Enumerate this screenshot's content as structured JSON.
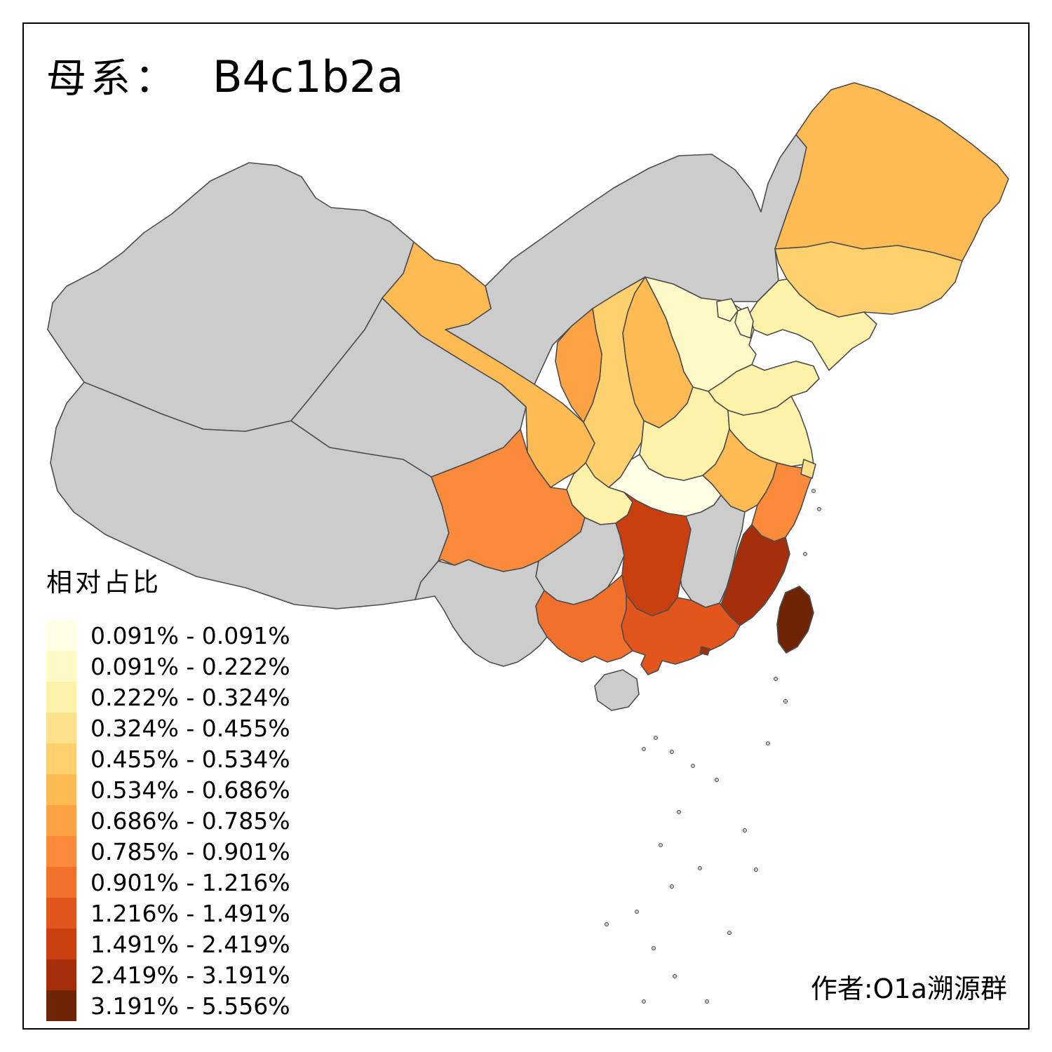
{
  "title": {
    "prefix": "母系：",
    "haplogroup": "B4c1b2a"
  },
  "legend": {
    "title": "相对占比",
    "items": [
      {
        "label": "0.091% - 0.091%",
        "color": "#FFFFE5"
      },
      {
        "label": "0.091% - 0.222%",
        "color": "#FFF9C8"
      },
      {
        "label": "0.222% - 0.324%",
        "color": "#FEF1A9"
      },
      {
        "label": "0.324% - 0.455%",
        "color": "#FEE28B"
      },
      {
        "label": "0.455% - 0.534%",
        "color": "#FED16E"
      },
      {
        "label": "0.534% - 0.686%",
        "color": "#FEBA53"
      },
      {
        "label": "0.686% - 0.785%",
        "color": "#FDA245"
      },
      {
        "label": "0.785% - 0.901%",
        "color": "#FB8A3A"
      },
      {
        "label": "0.901% - 1.216%",
        "color": "#F1702B"
      },
      {
        "label": "1.216% - 1.491%",
        "color": "#E2551C"
      },
      {
        "label": "1.491% - 2.419%",
        "color": "#C93F10"
      },
      {
        "label": "2.419% - 3.191%",
        "color": "#A52F0B"
      },
      {
        "label": "3.191% - 5.556%",
        "color": "#6F2405"
      }
    ]
  },
  "author": "作者:O1a溯源群",
  "map": {
    "na_color": "#CCCCCC",
    "border_color": "#4D4D4D",
    "background": "#FFFFFF",
    "provinces": [
      {
        "id": "xinjiang",
        "class": null
      },
      {
        "id": "xizang",
        "class": null
      },
      {
        "id": "qinghai",
        "class": null
      },
      {
        "id": "neimenggu",
        "class": null
      },
      {
        "id": "gansu",
        "class": 6
      },
      {
        "id": "heilongjiang",
        "class": 6
      },
      {
        "id": "jilin",
        "class": 5
      },
      {
        "id": "liaoning",
        "class": 3
      },
      {
        "id": "hebei",
        "class": 2
      },
      {
        "id": "shanxi",
        "class": 6
      },
      {
        "id": "shaanxi",
        "class": 5
      },
      {
        "id": "ningxia",
        "class": 7
      },
      {
        "id": "shandong",
        "class": 3
      },
      {
        "id": "henan",
        "class": 3
      },
      {
        "id": "jiangsu",
        "class": 3
      },
      {
        "id": "anhui",
        "class": 6
      },
      {
        "id": "hubei",
        "class": 1
      },
      {
        "id": "sichuan",
        "class": 8
      },
      {
        "id": "chongqing",
        "class": 3
      },
      {
        "id": "guizhou",
        "class": null
      },
      {
        "id": "jiangxi",
        "class": null
      },
      {
        "id": "hunan",
        "class": 11
      },
      {
        "id": "zhejiang",
        "class": 8
      },
      {
        "id": "fujian",
        "class": 12
      },
      {
        "id": "shanghai",
        "class": 4
      },
      {
        "id": "beijing",
        "class": 2
      },
      {
        "id": "tianjin",
        "class": 2
      },
      {
        "id": "taiwan",
        "class": 13
      },
      {
        "id": "yunnan",
        "class": null
      },
      {
        "id": "guangxi",
        "class": 9
      },
      {
        "id": "guangdong",
        "class": 10
      },
      {
        "id": "hainan",
        "class": null
      },
      {
        "id": "hongkong",
        "class": 12
      }
    ]
  }
}
